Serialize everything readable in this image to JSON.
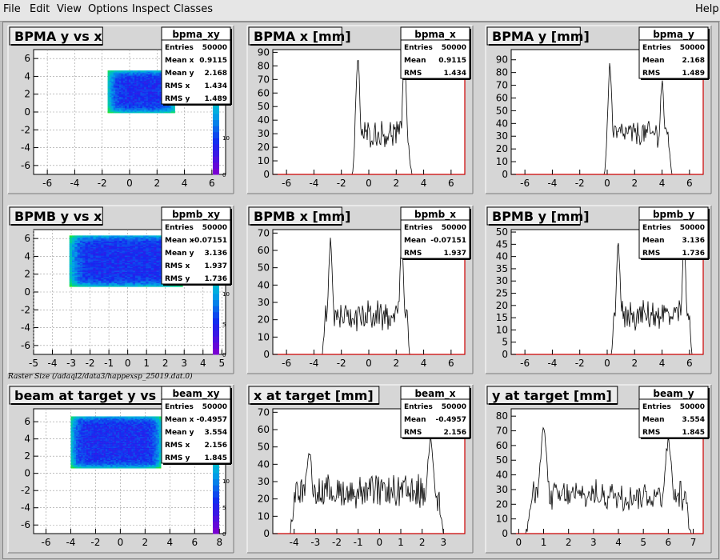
{
  "menu": {
    "file": "File",
    "edit": "Edit",
    "view": "View",
    "options": "Options",
    "inspect": "Inspect",
    "classes": "Classes",
    "help": "Help"
  },
  "caption": "Raster Size (/adaql2/data3/happexsp_25019.dat.0)",
  "colors": {
    "frame_bg": "#d3d3d3",
    "pad_bg": "#ffffff",
    "axis_red": "#cc0000",
    "hist_line": "#000000"
  },
  "panels": [
    {
      "kind": "h2",
      "title": "BPMA y vs x",
      "stat_name": "bpma_xy",
      "stats": [
        [
          "Entries",
          "50000"
        ],
        [
          "Mean x",
          "0.9115"
        ],
        [
          "Mean y",
          "2.168"
        ],
        [
          "RMS x",
          "1.434"
        ],
        [
          "RMS y",
          "1.489"
        ]
      ],
      "xaxis": {
        "min": -7,
        "max": 7,
        "ticks": [
          "-6",
          "-4",
          "-2",
          "0",
          "2",
          "4",
          "6"
        ]
      },
      "yaxis": {
        "min": -7,
        "max": 7,
        "ticks": [
          "-6",
          "-4",
          "-2",
          "0",
          "2",
          "4",
          "6"
        ]
      },
      "palette_ticks": [
        "0",
        "10",
        "20",
        "30"
      ],
      "palette_max": 33,
      "region": {
        "x0": -1.6,
        "x1": 3.3,
        "y0": -0.1,
        "y1": 4.6
      }
    },
    {
      "kind": "h1",
      "title": "BPMA x [mm]",
      "stat_name": "bpma_x",
      "stats": [
        [
          "Entries",
          "50000"
        ],
        [
          "Mean",
          "0.9115"
        ],
        [
          "RMS",
          "1.434"
        ]
      ],
      "xaxis": {
        "min": -7,
        "max": 7,
        "ticks": [
          "-6",
          "-4",
          "-2",
          "0",
          "2",
          "4",
          "6"
        ]
      },
      "yaxis": {
        "min": 0,
        "max": 92,
        "ticks": [
          "0",
          "10",
          "20",
          "30",
          "40",
          "50",
          "60",
          "70",
          "80",
          "90"
        ]
      },
      "shape": {
        "lo": -1.2,
        "hi": 3.1,
        "lpk": -0.8,
        "rpk": 2.6,
        "pmax": 86,
        "pmax2": 86,
        "base": 30,
        "noise": 8
      }
    },
    {
      "kind": "h1",
      "title": "BPMA y [mm]",
      "stat_name": "bpma_y",
      "stats": [
        [
          "Entries",
          "50000"
        ],
        [
          "Mean",
          "2.168"
        ],
        [
          "RMS",
          "1.489"
        ]
      ],
      "xaxis": {
        "min": -7,
        "max": 7,
        "ticks": [
          "-6",
          "-4",
          "-2",
          "0",
          "2",
          "4",
          "6"
        ]
      },
      "yaxis": {
        "min": 0,
        "max": 98,
        "ticks": [
          "0",
          "10",
          "20",
          "30",
          "40",
          "50",
          "60",
          "70",
          "80",
          "90"
        ]
      },
      "shape": {
        "lo": -0.2,
        "hi": 4.7,
        "lpk": 0.2,
        "rpk": 4.0,
        "pmax": 86,
        "pmax2": 72,
        "base": 32,
        "noise": 8
      }
    },
    {
      "kind": "h2",
      "title": "BPMB y vs x",
      "stat_name": "bpmb_xy",
      "stats": [
        [
          "Entries",
          "50000"
        ],
        [
          "Mean x",
          "-0.07151"
        ],
        [
          "Mean y",
          "3.136"
        ],
        [
          "RMS x",
          "1.937"
        ],
        [
          "RMS y",
          "1.736"
        ]
      ],
      "xaxis": {
        "min": -5,
        "max": 5.2,
        "ticks": [
          "-5",
          "-4",
          "-3",
          "-2",
          "-1",
          "0",
          "1",
          "2",
          "3",
          "4",
          "5"
        ]
      },
      "yaxis": {
        "min": -7,
        "max": 7,
        "ticks": [
          "-6",
          "-4",
          "-2",
          "0",
          "2",
          "4",
          "6"
        ]
      },
      "palette_ticks": [
        "0",
        "5",
        "10",
        "15"
      ],
      "palette_max": 20,
      "region": {
        "x0": -3.1,
        "x1": 2.9,
        "y0": 0.6,
        "y1": 6.3
      }
    },
    {
      "kind": "h1",
      "title": "BPMB x [mm]",
      "stat_name": "bpmb_x",
      "stats": [
        [
          "Entries",
          "50000"
        ],
        [
          "Mean",
          "-0.07151"
        ],
        [
          "RMS",
          "1.937"
        ]
      ],
      "xaxis": {
        "min": -7,
        "max": 7,
        "ticks": [
          "-6",
          "-4",
          "-2",
          "0",
          "2",
          "4",
          "6"
        ]
      },
      "yaxis": {
        "min": 0,
        "max": 72,
        "ticks": [
          "0",
          "10",
          "20",
          "30",
          "40",
          "50",
          "60",
          "70"
        ]
      },
      "shape": {
        "lo": -3.4,
        "hi": 3.0,
        "lpk": -2.8,
        "rpk": 2.4,
        "pmax": 65,
        "pmax2": 65,
        "base": 22,
        "noise": 7
      }
    },
    {
      "kind": "h1",
      "title": "BPMB y [mm]",
      "stat_name": "bpmb_y",
      "stats": [
        [
          "Entries",
          "50000"
        ],
        [
          "Mean",
          "3.136"
        ],
        [
          "RMS",
          "1.736"
        ]
      ],
      "xaxis": {
        "min": -7,
        "max": 7,
        "ticks": [
          "-6",
          "-4",
          "-2",
          "0",
          "2",
          "4",
          "6"
        ]
      },
      "yaxis": {
        "min": 0,
        "max": 51,
        "ticks": [
          "0",
          "5",
          "10",
          "15",
          "20",
          "25",
          "30",
          "35",
          "40",
          "45",
          "50"
        ]
      },
      "shape": {
        "lo": 0.3,
        "hi": 6.2,
        "lpk": 0.8,
        "rpk": 5.6,
        "pmax": 45,
        "pmax2": 44,
        "base": 16,
        "noise": 5
      }
    },
    {
      "kind": "h2",
      "title": "beam at target y vs x",
      "stat_name": "beam_xy",
      "stats": [
        [
          "Entries",
          "50000"
        ],
        [
          "Mean x",
          "-0.4957"
        ],
        [
          "Mean y",
          "3.554"
        ],
        [
          "RMS x",
          "2.156"
        ],
        [
          "RMS y",
          "1.845"
        ]
      ],
      "xaxis": {
        "min": -7,
        "max": 8.5,
        "ticks": [
          "-6",
          "-4",
          "-2",
          "0",
          "2",
          "4",
          "6",
          "8"
        ]
      },
      "yaxis": {
        "min": -7,
        "max": 7.5,
        "ticks": [
          "-6",
          "-4",
          "-2",
          "0",
          "2",
          "4",
          "6"
        ]
      },
      "palette_ticks": [
        "0",
        "5",
        "10",
        "15",
        "20"
      ],
      "palette_max": 23,
      "region": {
        "x0": -4.0,
        "x1": 3.2,
        "y0": 0.6,
        "y1": 6.6
      }
    },
    {
      "kind": "h1",
      "title": "x at target [mm]",
      "stat_name": "beam_x",
      "stats": [
        [
          "Entries",
          "50000"
        ],
        [
          "Mean",
          "-0.4957"
        ],
        [
          "RMS",
          "2.156"
        ]
      ],
      "xaxis": {
        "min": -5,
        "max": 4,
        "ticks": [
          "-4",
          "-3",
          "-2",
          "-1",
          "0",
          "1",
          "2",
          "3"
        ]
      },
      "yaxis": {
        "min": 0,
        "max": 72,
        "ticks": [
          "0",
          "10",
          "20",
          "30",
          "40",
          "50",
          "60",
          "70"
        ]
      },
      "shape": {
        "lo": -4.2,
        "hi": 3.0,
        "lpk": -3.3,
        "rpk": 2.4,
        "pmax": 48,
        "pmax2": 55,
        "base": 24,
        "noise": 8
      }
    },
    {
      "kind": "h1",
      "title": "y at target [mm]",
      "stat_name": "beam_y",
      "stats": [
        [
          "Entries",
          "50000"
        ],
        [
          "Mean",
          "3.554"
        ],
        [
          "RMS",
          "1.845"
        ]
      ],
      "xaxis": {
        "min": -0.3,
        "max": 7.4,
        "ticks": [
          "0",
          "1",
          "2",
          "3",
          "4",
          "5",
          "6",
          "7"
        ]
      },
      "yaxis": {
        "min": 0,
        "max": 85,
        "ticks": [
          "0",
          "10",
          "20",
          "30",
          "40",
          "50",
          "60",
          "70",
          "80"
        ]
      },
      "shape": {
        "lo": 0.3,
        "hi": 6.9,
        "lpk": 1.0,
        "rpk": 6.0,
        "pmax": 70,
        "pmax2": 62,
        "base": 26,
        "noise": 8
      }
    }
  ]
}
